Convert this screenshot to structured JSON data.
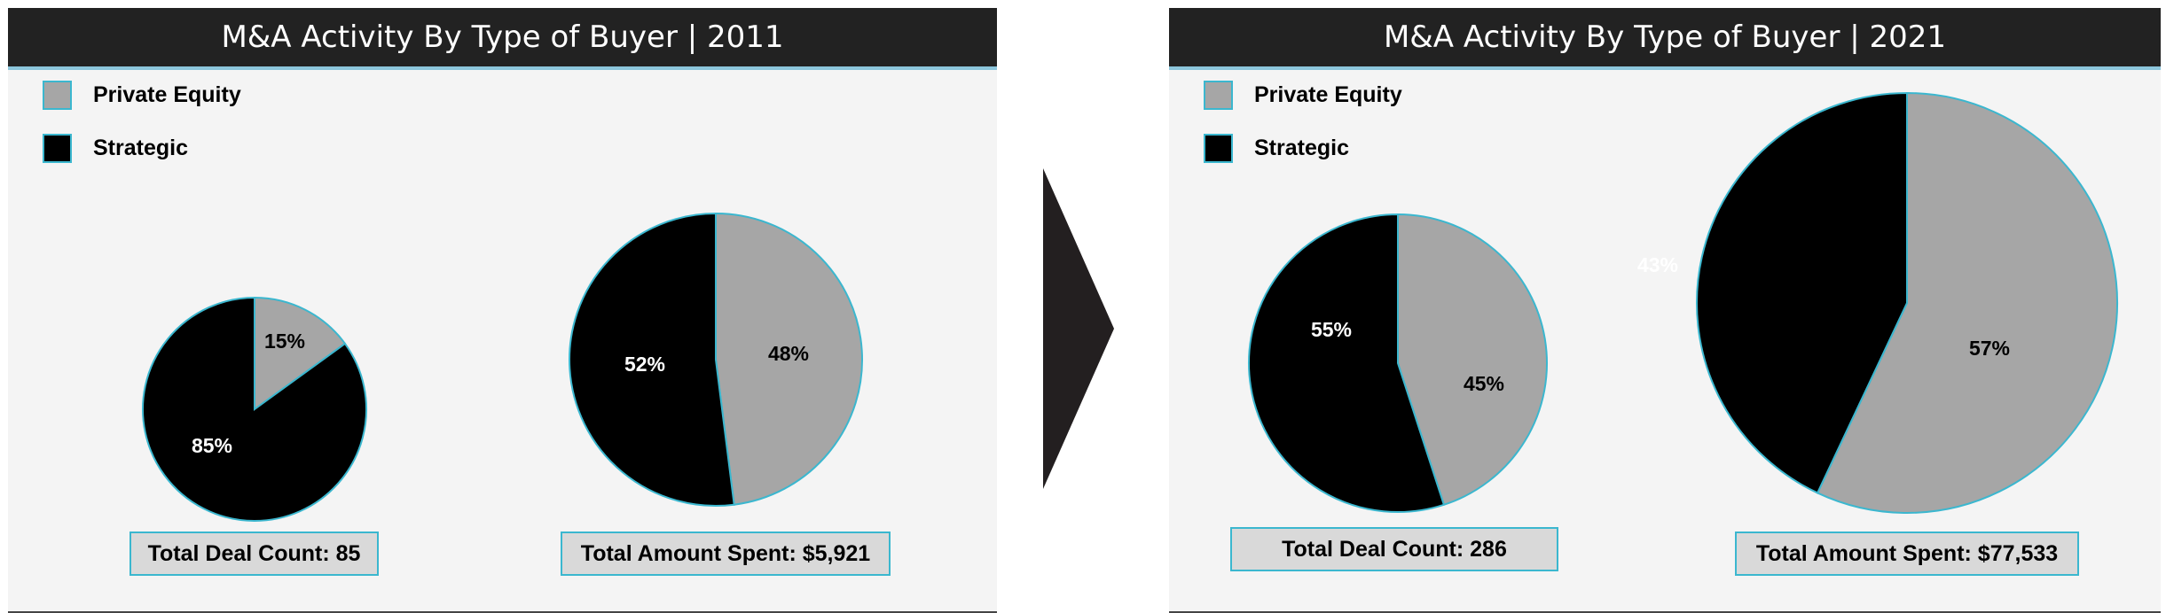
{
  "colors": {
    "private_equity": "#a6a6a6",
    "strategic": "#000000",
    "outline": "#3bb7cf",
    "header_bg": "#222222"
  },
  "legend": {
    "private_equity": "Private Equity",
    "strategic": "Strategic"
  },
  "panels": {
    "left": {
      "title": "M&A Activity By Type of Buyer | 2011",
      "deal_total": "Total Deal Count: 85",
      "amount_total": "Total Amount Spent: $5,921"
    },
    "right": {
      "title": "M&A Activity By Type of Buyer | 2021",
      "deal_total": "Total Deal Count: 286",
      "amount_total": "Total Amount Spent: $77,533"
    }
  },
  "chart_data": [
    {
      "type": "pie",
      "title": "",
      "categories": [
        "Private Equity",
        "Strategic"
      ],
      "values": [
        15,
        85
      ],
      "labels": [
        "15%",
        "85%"
      ]
    },
    {
      "type": "pie",
      "title": "",
      "categories": [
        "Private Equity",
        "Strategic"
      ],
      "values": [
        48,
        52
      ],
      "labels": [
        "48%",
        "52%"
      ]
    },
    {
      "type": "pie",
      "title": "",
      "categories": [
        "Private Equity",
        "Strategic"
      ],
      "values": [
        45,
        55
      ],
      "labels": [
        "45%",
        "55%"
      ]
    },
    {
      "type": "pie",
      "title": "",
      "categories": [
        "Private Equity",
        "Strategic"
      ],
      "values": [
        57,
        43
      ],
      "labels": [
        "57%",
        "43%"
      ]
    }
  ]
}
